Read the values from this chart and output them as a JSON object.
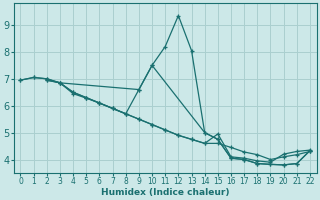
{
  "xlabel": "Humidex (Indice chaleur)",
  "bg_color": "#cce8e8",
  "grid_color": "#aacfcf",
  "line_color": "#1a7070",
  "xlim": [
    -0.5,
    22.5
  ],
  "ylim": [
    3.5,
    9.8
  ],
  "xticks": [
    0,
    1,
    2,
    3,
    4,
    5,
    6,
    7,
    8,
    9,
    10,
    11,
    12,
    13,
    14,
    15,
    16,
    17,
    18,
    19,
    20,
    21,
    22
  ],
  "yticks": [
    4,
    5,
    6,
    7,
    8,
    9
  ],
  "lines": [
    {
      "x": [
        0,
        1,
        2,
        3,
        4,
        5,
        6,
        7,
        8,
        9,
        10,
        11,
        12,
        13,
        14,
        15,
        16,
        17,
        18,
        19,
        20,
        21,
        22
      ],
      "y": [
        6.95,
        7.05,
        7.0,
        6.85,
        6.5,
        6.3,
        6.1,
        5.9,
        5.7,
        5.5,
        5.3,
        5.1,
        4.9,
        4.75,
        4.6,
        4.95,
        4.1,
        4.05,
        3.95,
        3.9,
        4.2,
        4.3,
        4.35
      ]
    },
    {
      "x": [
        0,
        1,
        2,
        3,
        4,
        5,
        6,
        7,
        8,
        9,
        10,
        11,
        12,
        13,
        14,
        15,
        16,
        17,
        18,
        19,
        20,
        21,
        22
      ],
      "y": [
        6.95,
        7.05,
        7.0,
        6.85,
        6.5,
        6.3,
        6.1,
        5.9,
        5.7,
        5.5,
        5.3,
        5.1,
        4.9,
        4.75,
        4.6,
        4.6,
        4.45,
        4.28,
        4.18,
        4.0,
        4.1,
        4.18,
        4.3
      ]
    },
    {
      "x": [
        2,
        3,
        4,
        5,
        6,
        7,
        8,
        9,
        10,
        11,
        12,
        13,
        14,
        15,
        16,
        17,
        18,
        19,
        20,
        21,
        22
      ],
      "y": [
        6.95,
        6.85,
        6.45,
        6.28,
        6.1,
        5.9,
        5.7,
        6.6,
        7.5,
        8.2,
        9.35,
        8.05,
        5.0,
        4.75,
        4.05,
        4.0,
        3.85,
        3.82,
        3.8,
        3.85,
        4.33
      ]
    },
    {
      "x": [
        2,
        3,
        9,
        10,
        14,
        15,
        16,
        17,
        18,
        19,
        20,
        21,
        22
      ],
      "y": [
        6.95,
        6.85,
        6.6,
        7.5,
        5.0,
        4.75,
        4.05,
        4.0,
        3.85,
        3.82,
        3.8,
        3.85,
        4.33
      ]
    }
  ]
}
